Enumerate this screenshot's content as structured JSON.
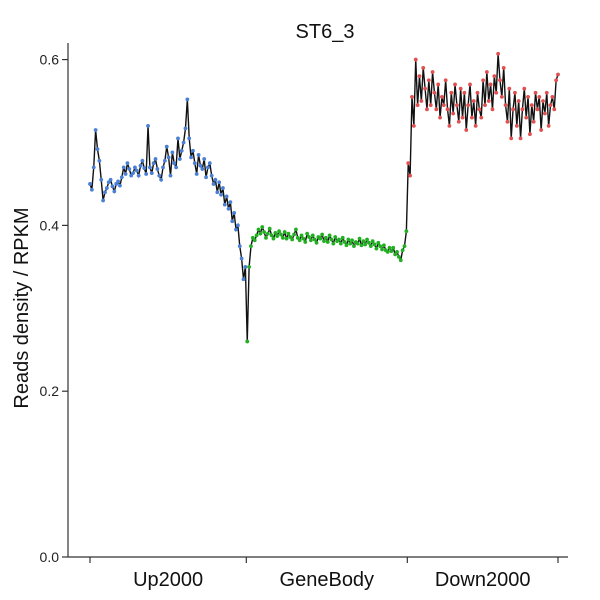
{
  "chart_data": {
    "type": "line",
    "title": "ST6_3",
    "ylabel": "Reads density / RPKM",
    "xlabel": "",
    "ylim": [
      0,
      0.62
    ],
    "yticks": [
      0.0,
      0.2,
      0.4,
      0.6
    ],
    "ytick_labels": [
      "0.0",
      "0.2",
      "0.4",
      "0.6"
    ],
    "categories": [
      "Up2000",
      "GeneBody",
      "Down2000"
    ],
    "grid": false,
    "legend": "none",
    "segments": [
      {
        "region": "Up2000",
        "color": "#4a7fd4",
        "values": [
          0.45,
          0.443,
          0.47,
          0.515,
          0.492,
          0.478,
          0.455,
          0.43,
          0.44,
          0.445,
          0.452,
          0.455,
          0.447,
          0.441,
          0.45,
          0.453,
          0.448,
          0.458,
          0.47,
          0.462,
          0.475,
          0.468,
          0.46,
          0.463,
          0.47,
          0.466,
          0.46,
          0.472,
          0.478,
          0.469,
          0.462,
          0.52,
          0.47,
          0.463,
          0.475,
          0.48,
          0.468,
          0.46,
          0.455,
          0.47,
          0.478,
          0.495,
          0.482,
          0.46,
          0.488,
          0.475,
          0.47,
          0.505,
          0.48,
          0.49,
          0.5,
          0.517,
          0.552,
          0.505,
          0.482,
          0.49,
          0.475,
          0.462,
          0.485,
          0.472,
          0.468,
          0.48,
          0.458,
          0.47,
          0.475,
          0.46,
          0.45,
          0.455,
          0.44,
          0.452,
          0.437,
          0.445,
          0.425,
          0.435,
          0.42,
          0.428,
          0.405,
          0.415,
          0.395,
          0.4,
          0.375,
          0.36,
          0.335,
          0.35
        ]
      },
      {
        "region": "GeneBody",
        "color": "#22b022",
        "values": [
          0.26,
          0.35,
          0.375,
          0.385,
          0.382,
          0.388,
          0.395,
          0.39,
          0.398,
          0.392,
          0.385,
          0.39,
          0.396,
          0.388,
          0.384,
          0.391,
          0.387,
          0.393,
          0.389,
          0.385,
          0.392,
          0.384,
          0.39,
          0.386,
          0.383,
          0.389,
          0.395,
          0.385,
          0.382,
          0.388,
          0.384,
          0.38,
          0.39,
          0.386,
          0.382,
          0.388,
          0.383,
          0.379,
          0.386,
          0.384,
          0.389,
          0.381,
          0.385,
          0.38,
          0.388,
          0.383,
          0.378,
          0.386,
          0.381,
          0.383,
          0.378,
          0.385,
          0.38,
          0.376,
          0.383,
          0.378,
          0.382,
          0.375,
          0.38,
          0.378,
          0.384,
          0.376,
          0.381,
          0.377,
          0.383,
          0.379,
          0.375,
          0.381,
          0.377,
          0.372,
          0.379,
          0.375,
          0.371,
          0.376,
          0.37,
          0.368,
          0.373,
          0.369,
          0.373,
          0.365,
          0.368,
          0.362,
          0.358,
          0.37,
          0.375,
          0.393
        ]
      },
      {
        "region": "Down2000",
        "color": "#e05050",
        "values": [
          0.475,
          0.46,
          0.555,
          0.52,
          0.6,
          0.545,
          0.58,
          0.55,
          0.59,
          0.565,
          0.54,
          0.575,
          0.545,
          0.585,
          0.56,
          0.54,
          0.57,
          0.53,
          0.555,
          0.545,
          0.575,
          0.54,
          0.52,
          0.56,
          0.535,
          0.57,
          0.545,
          0.525,
          0.565,
          0.53,
          0.56,
          0.515,
          0.545,
          0.57,
          0.53,
          0.55,
          0.52,
          0.56,
          0.54,
          0.53,
          0.575,
          0.545,
          0.585,
          0.55,
          0.57,
          0.54,
          0.58,
          0.56,
          0.607,
          0.575,
          0.555,
          0.59,
          0.545,
          0.525,
          0.565,
          0.505,
          0.54,
          0.56,
          0.52,
          0.55,
          0.505,
          0.54,
          0.565,
          0.53,
          0.555,
          0.51,
          0.545,
          0.525,
          0.56,
          0.54,
          0.555,
          0.515,
          0.55,
          0.535,
          0.56,
          0.52,
          0.545,
          0.555,
          0.54,
          0.575,
          0.582
        ]
      }
    ]
  }
}
